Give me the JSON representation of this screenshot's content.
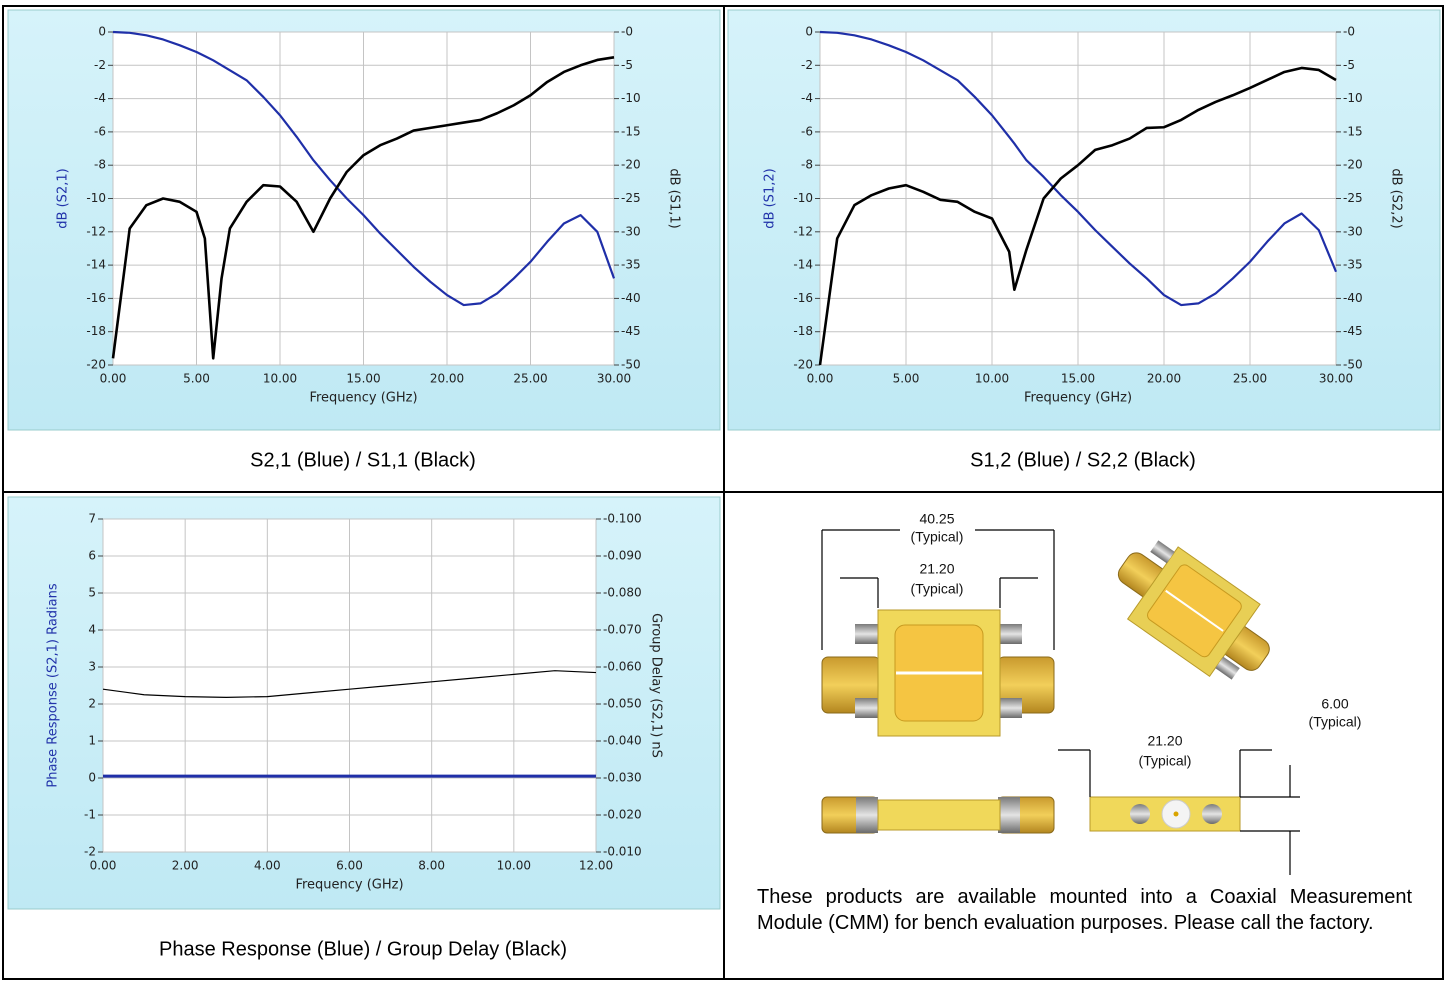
{
  "chart_data": [
    {
      "type": "line",
      "caption": "S2,1 (Blue) / S1,1 (Black)",
      "x_label": "Frequency (GHz)",
      "y_label": "dB (S2,1)",
      "y2_label": "dB (S1,1)",
      "x": [
        0,
        1,
        2,
        3,
        4,
        5,
        5.5,
        6,
        6.5,
        7,
        8,
        9,
        10,
        11,
        12,
        13,
        14,
        15,
        16,
        17,
        18,
        19,
        20,
        21,
        22,
        23,
        24,
        25,
        26,
        27,
        28,
        29,
        30
      ],
      "xlim": [
        0,
        30
      ],
      "xticks": [
        {
          "value": 0,
          "label": "0.00"
        },
        {
          "value": 5,
          "label": "5.00"
        },
        {
          "value": 10,
          "label": "10.00"
        },
        {
          "value": 15,
          "label": "15.00"
        },
        {
          "value": 20,
          "label": "20.00"
        },
        {
          "value": 25,
          "label": "25.00"
        },
        {
          "value": 30,
          "label": "30.00"
        }
      ],
      "ylim": [
        -20,
        0
      ],
      "yticks": [
        -20,
        -18,
        -16,
        -14,
        -12,
        -10,
        -8,
        -6,
        -4,
        -2,
        0
      ],
      "y2lim": [
        -50,
        0
      ],
      "y2ticks": [
        -50,
        -45,
        -40,
        -35,
        -30,
        -25,
        -20,
        -15,
        -10,
        -5,
        {
          "value": 0,
          "label": "-0"
        }
      ],
      "grid": true,
      "series": [
        {
          "color": "#1f2fa8",
          "values": [
            0,
            -0.05,
            -0.2,
            -0.45,
            -0.8,
            -1.2,
            -1.45,
            -1.7,
            -2.0,
            -2.3,
            -2.9,
            -3.9,
            -5.0,
            -6.3,
            -7.7,
            -8.9,
            -10.0,
            -11.0,
            -12.1,
            -13.1,
            -14.1,
            -15.0,
            -15.8,
            -16.4,
            -16.3,
            -15.7,
            -14.8,
            -13.8,
            -12.6,
            -11.5,
            -11.0,
            -12.0,
            -14.8
          ]
        },
        {
          "color": "#000000",
          "axis": "y2",
          "values": [
            -49,
            -29.5,
            -26,
            -25,
            -25.5,
            -27,
            -31,
            -49,
            -37,
            -29.5,
            -25.5,
            -23,
            -23.2,
            -25.5,
            -30,
            -25,
            -21,
            -18.5,
            -17,
            -16,
            -14.8,
            -14.4,
            -14,
            -13.6,
            -13.2,
            -12.2,
            -11,
            -9.5,
            -7.5,
            -6,
            -5,
            -4.2,
            -3.8
          ]
        }
      ]
    },
    {
      "type": "line",
      "caption": "S1,2 (Blue) / S2,2 (Black)",
      "x_label": "Frequency (GHz)",
      "y_label": "dB (S1,2)",
      "y2_label": "dB (S2,2)",
      "x": [
        0,
        1,
        2,
        3,
        4,
        5,
        6,
        7,
        8,
        9,
        10,
        11,
        11.3,
        12,
        13,
        14,
        15,
        16,
        17,
        18,
        19,
        20,
        21,
        22,
        23,
        24,
        25,
        26,
        27,
        28,
        29,
        30
      ],
      "xlim": [
        0,
        30
      ],
      "xticks": [
        {
          "value": 0,
          "label": "0.00"
        },
        {
          "value": 5,
          "label": "5.00"
        },
        {
          "value": 10,
          "label": "10.00"
        },
        {
          "value": 15,
          "label": "15.00"
        },
        {
          "value": 20,
          "label": "20.00"
        },
        {
          "value": 25,
          "label": "25.00"
        },
        {
          "value": 30,
          "label": "30.00"
        }
      ],
      "ylim": [
        -20,
        0
      ],
      "yticks": [
        -20,
        -18,
        -16,
        -14,
        -12,
        -10,
        -8,
        -6,
        -4,
        -2,
        0
      ],
      "y2lim": [
        -50,
        0
      ],
      "y2ticks": [
        -50,
        -45,
        -40,
        -35,
        -30,
        -25,
        -20,
        -15,
        -10,
        -5,
        {
          "value": 0,
          "label": "-0"
        }
      ],
      "grid": true,
      "series": [
        {
          "color": "#1f2fa8",
          "values": [
            0,
            -0.05,
            -0.2,
            -0.45,
            -0.8,
            -1.2,
            -1.7,
            -2.3,
            -2.9,
            -3.9,
            -5.0,
            -6.3,
            -6.7,
            -7.7,
            -8.7,
            -9.8,
            -10.8,
            -11.9,
            -12.9,
            -13.9,
            -14.8,
            -15.8,
            -16.4,
            -16.3,
            -15.7,
            -14.8,
            -13.8,
            -12.6,
            -11.5,
            -10.9,
            -11.9,
            -14.4
          ]
        },
        {
          "color": "#000000",
          "axis": "y2",
          "values": [
            -50,
            -31,
            -26,
            -24.5,
            -23.5,
            -23,
            -24,
            -25.2,
            -25.5,
            -27,
            -28,
            -33,
            -38.7,
            -32.7,
            -25,
            -22,
            -20,
            -17.7,
            -17,
            -16,
            -14.4,
            -14.3,
            -13.2,
            -11.7,
            -10.5,
            -9.5,
            -8.4,
            -7.2,
            -6,
            -5.4,
            -5.7,
            -7.2
          ]
        }
      ]
    },
    {
      "type": "line",
      "caption": "Phase Response (Blue) / Group Delay (Black)",
      "x_label": "Frequency (GHz)",
      "y_label": "Phase Response (S2,1) Radians",
      "y2_label": "Group Delay (S2,1) nS",
      "x": [
        0,
        1,
        2,
        3,
        4,
        5,
        6,
        7,
        8,
        9,
        10,
        11,
        12
      ],
      "xlim": [
        0,
        12
      ],
      "xticks": [
        {
          "value": 0,
          "label": "0.00"
        },
        {
          "value": 2,
          "label": "2.00"
        },
        {
          "value": 4,
          "label": "4.00"
        },
        {
          "value": 6,
          "label": "6.00"
        },
        {
          "value": 8,
          "label": "8.00"
        },
        {
          "value": 10,
          "label": "10.00"
        },
        {
          "value": 12,
          "label": "12.00"
        }
      ],
      "ylim": [
        -2,
        7
      ],
      "yticks": [
        -2,
        -1,
        0,
        1,
        2,
        3,
        4,
        5,
        6,
        7
      ],
      "y2lim": [
        -0.01,
        -0.1
      ],
      "y2ticks": [
        {
          "value": -0.01,
          "label": "-0.010"
        },
        {
          "value": -0.02,
          "label": "-0.020"
        },
        {
          "value": -0.03,
          "label": "-0.030"
        },
        {
          "value": -0.04,
          "label": "-0.040"
        },
        {
          "value": -0.05,
          "label": "-0.050"
        },
        {
          "value": -0.06,
          "label": "-0.060"
        },
        {
          "value": -0.07,
          "label": "-0.070"
        },
        {
          "value": -0.08,
          "label": "-0.080"
        },
        {
          "value": -0.09,
          "label": "-0.090"
        },
        {
          "value": -0.1,
          "label": "-0.100"
        }
      ],
      "grid": true,
      "series": [
        {
          "color": "#1f2fa8",
          "values": [
            0.05,
            0.05,
            0.05,
            0.05,
            0.05,
            0.05,
            0.05,
            0.05,
            0.05,
            0.05,
            0.05,
            0.05,
            0.05
          ]
        },
        {
          "color": "#000000",
          "axis": "y2",
          "values": [
            -0.054,
            -0.0525,
            -0.052,
            -0.0518,
            -0.052,
            -0.053,
            -0.054,
            -0.055,
            -0.056,
            -0.057,
            -0.058,
            -0.059,
            -0.0585
          ]
        }
      ]
    }
  ],
  "drawing": {
    "dimensions": [
      {
        "size": "40.25",
        "note": "(Typical)"
      },
      {
        "size": "21.20",
        "note": "(Typical)"
      },
      {
        "size": "21.20",
        "note": "(Typical)"
      },
      {
        "size": "6.00",
        "note": "(Typical)"
      }
    ],
    "description": "These products are available mounted into a Coaxial Measurement Module (CMM) for bench evaluation purposes.  Please call the factory."
  }
}
